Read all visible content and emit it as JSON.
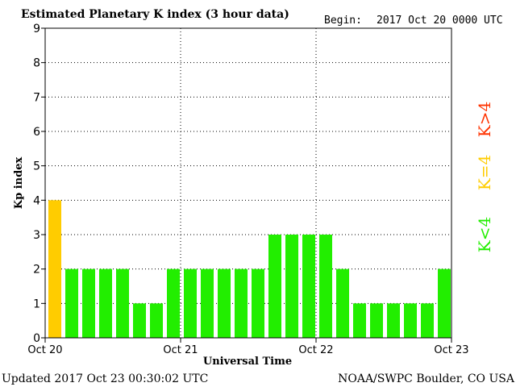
{
  "header": {
    "title": "Estimated Planetary K index (3 hour data)",
    "begin_label": "Begin:",
    "begin_value": "2017 Oct 20 0000 UTC"
  },
  "footer": {
    "updated": "Updated 2017 Oct 23 00:30:02 UTC",
    "source": "NOAA/SWPC Boulder, CO USA"
  },
  "legend": {
    "storm_label": "K>4",
    "threshold_label": "K=4",
    "quiet_label": "K<4"
  },
  "colors": {
    "quiet": "#22ee00",
    "threshold": "#ffcc00",
    "storm": "#ff3300",
    "grid": "#000000"
  },
  "chart_data": {
    "type": "bar",
    "title": "Estimated Planetary K index (3 hour data)",
    "xlabel": "Universal Time",
    "ylabel": "Kp index",
    "ylim": [
      0,
      9
    ],
    "yticks": [
      "0",
      "1",
      "2",
      "3",
      "4",
      "5",
      "6",
      "7",
      "8",
      "9"
    ],
    "xticks": [
      "Oct 20",
      "Oct 21",
      "Oct 22",
      "Oct 23"
    ],
    "grid": true,
    "values": [
      4,
      2,
      2,
      2,
      2,
      1,
      1,
      2,
      2,
      2,
      2,
      2,
      2,
      3,
      3,
      3,
      3,
      2,
      1,
      1,
      1,
      1,
      1,
      2
    ]
  }
}
